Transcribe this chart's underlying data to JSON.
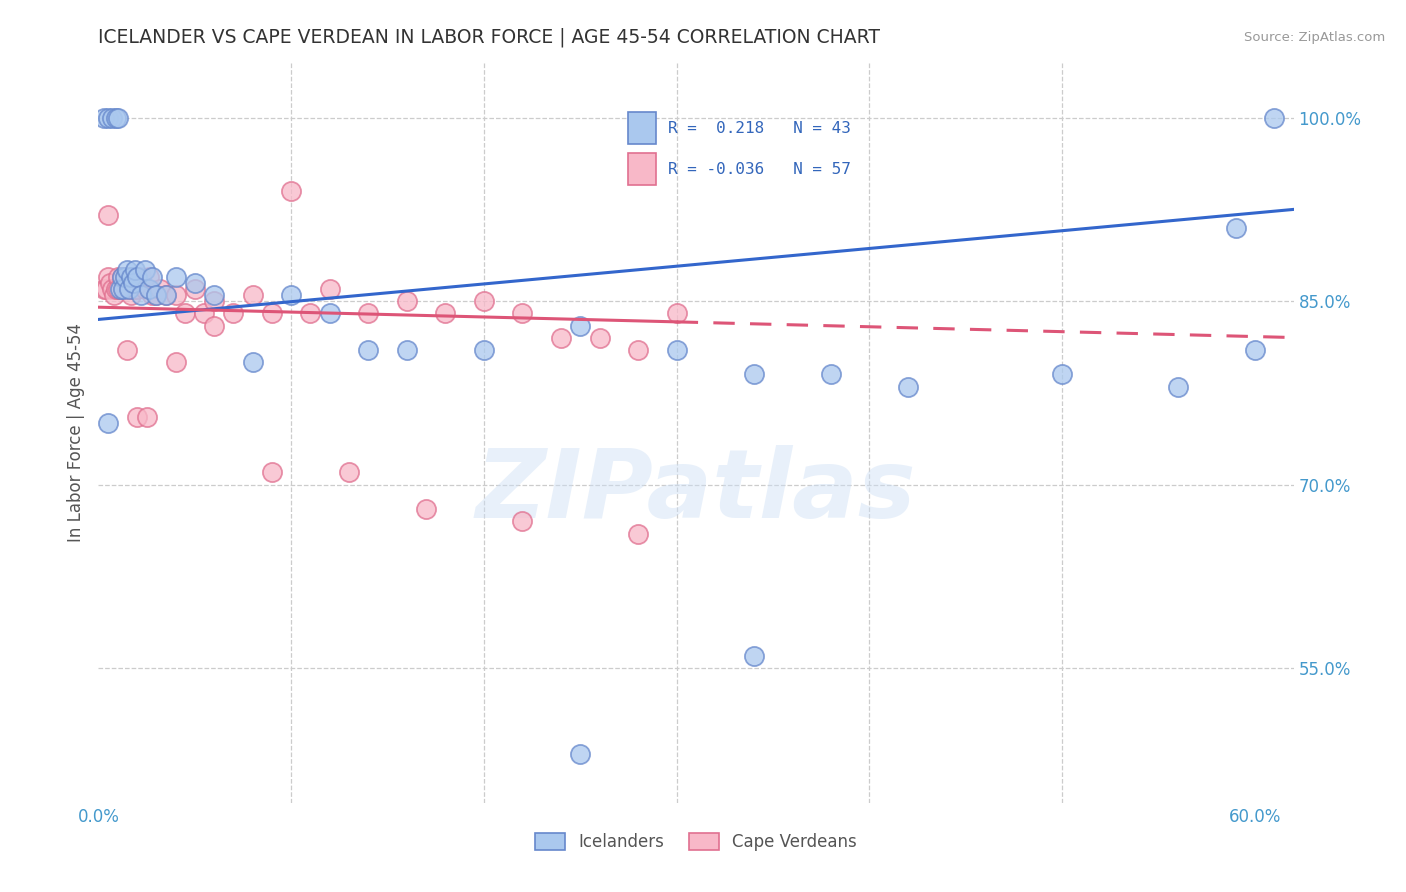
{
  "title": "ICELANDER VS CAPE VERDEAN IN LABOR FORCE | AGE 45-54 CORRELATION CHART",
  "source": "Source: ZipAtlas.com",
  "ylabel": "In Labor Force | Age 45-54",
  "xlim": [
    0.0,
    0.62
  ],
  "ylim": [
    0.44,
    1.045
  ],
  "blue_color": "#aac8ee",
  "blue_edge": "#6688cc",
  "pink_color": "#f8b8c8",
  "pink_edge": "#e07090",
  "blue_line": "#3366cc",
  "pink_line": "#dd5577",
  "legend_R_blue": "0.218",
  "legend_N_blue": "43",
  "legend_R_pink": "-0.036",
  "legend_N_pink": "57",
  "watermark_text": "ZIPatlas",
  "blue_x": [
    0.003,
    0.005,
    0.007,
    0.009,
    0.01,
    0.011,
    0.012,
    0.013,
    0.014,
    0.015,
    0.016,
    0.017,
    0.018,
    0.019,
    0.02,
    0.022,
    0.024,
    0.026,
    0.028,
    0.03,
    0.035,
    0.04,
    0.05,
    0.06,
    0.08,
    0.1,
    0.12,
    0.14,
    0.16,
    0.2,
    0.25,
    0.3,
    0.34,
    0.38,
    0.42,
    0.5,
    0.56,
    0.59,
    0.6,
    0.61,
    0.005,
    0.34,
    0.25
  ],
  "blue_y": [
    1.0,
    1.0,
    1.0,
    1.0,
    1.0,
    0.86,
    0.87,
    0.86,
    0.87,
    0.875,
    0.86,
    0.87,
    0.865,
    0.875,
    0.87,
    0.855,
    0.875,
    0.86,
    0.87,
    0.855,
    0.855,
    0.87,
    0.865,
    0.855,
    0.8,
    0.855,
    0.84,
    0.81,
    0.81,
    0.81,
    0.83,
    0.81,
    0.79,
    0.79,
    0.78,
    0.79,
    0.78,
    0.91,
    0.81,
    1.0,
    0.75,
    0.56,
    0.48
  ],
  "pink_x": [
    0.003,
    0.004,
    0.005,
    0.006,
    0.007,
    0.008,
    0.009,
    0.01,
    0.011,
    0.012,
    0.013,
    0.014,
    0.015,
    0.016,
    0.017,
    0.018,
    0.019,
    0.02,
    0.022,
    0.024,
    0.026,
    0.028,
    0.03,
    0.032,
    0.035,
    0.04,
    0.045,
    0.05,
    0.055,
    0.06,
    0.07,
    0.08,
    0.09,
    0.1,
    0.11,
    0.12,
    0.14,
    0.16,
    0.18,
    0.2,
    0.22,
    0.24,
    0.26,
    0.28,
    0.3,
    0.005,
    0.01,
    0.015,
    0.02,
    0.025,
    0.04,
    0.06,
    0.09,
    0.13,
    0.17,
    0.22,
    0.28
  ],
  "pink_y": [
    0.86,
    0.86,
    0.87,
    0.865,
    0.86,
    0.855,
    0.86,
    0.87,
    0.86,
    0.87,
    0.86,
    0.87,
    0.86,
    0.87,
    0.855,
    0.86,
    0.87,
    0.86,
    0.87,
    0.86,
    0.87,
    0.855,
    0.855,
    0.86,
    0.855,
    0.855,
    0.84,
    0.86,
    0.84,
    0.85,
    0.84,
    0.855,
    0.84,
    0.94,
    0.84,
    0.86,
    0.84,
    0.85,
    0.84,
    0.85,
    0.84,
    0.82,
    0.82,
    0.81,
    0.84,
    0.92,
    0.86,
    0.81,
    0.755,
    0.755,
    0.8,
    0.83,
    0.71,
    0.71,
    0.68,
    0.67,
    0.66
  ]
}
